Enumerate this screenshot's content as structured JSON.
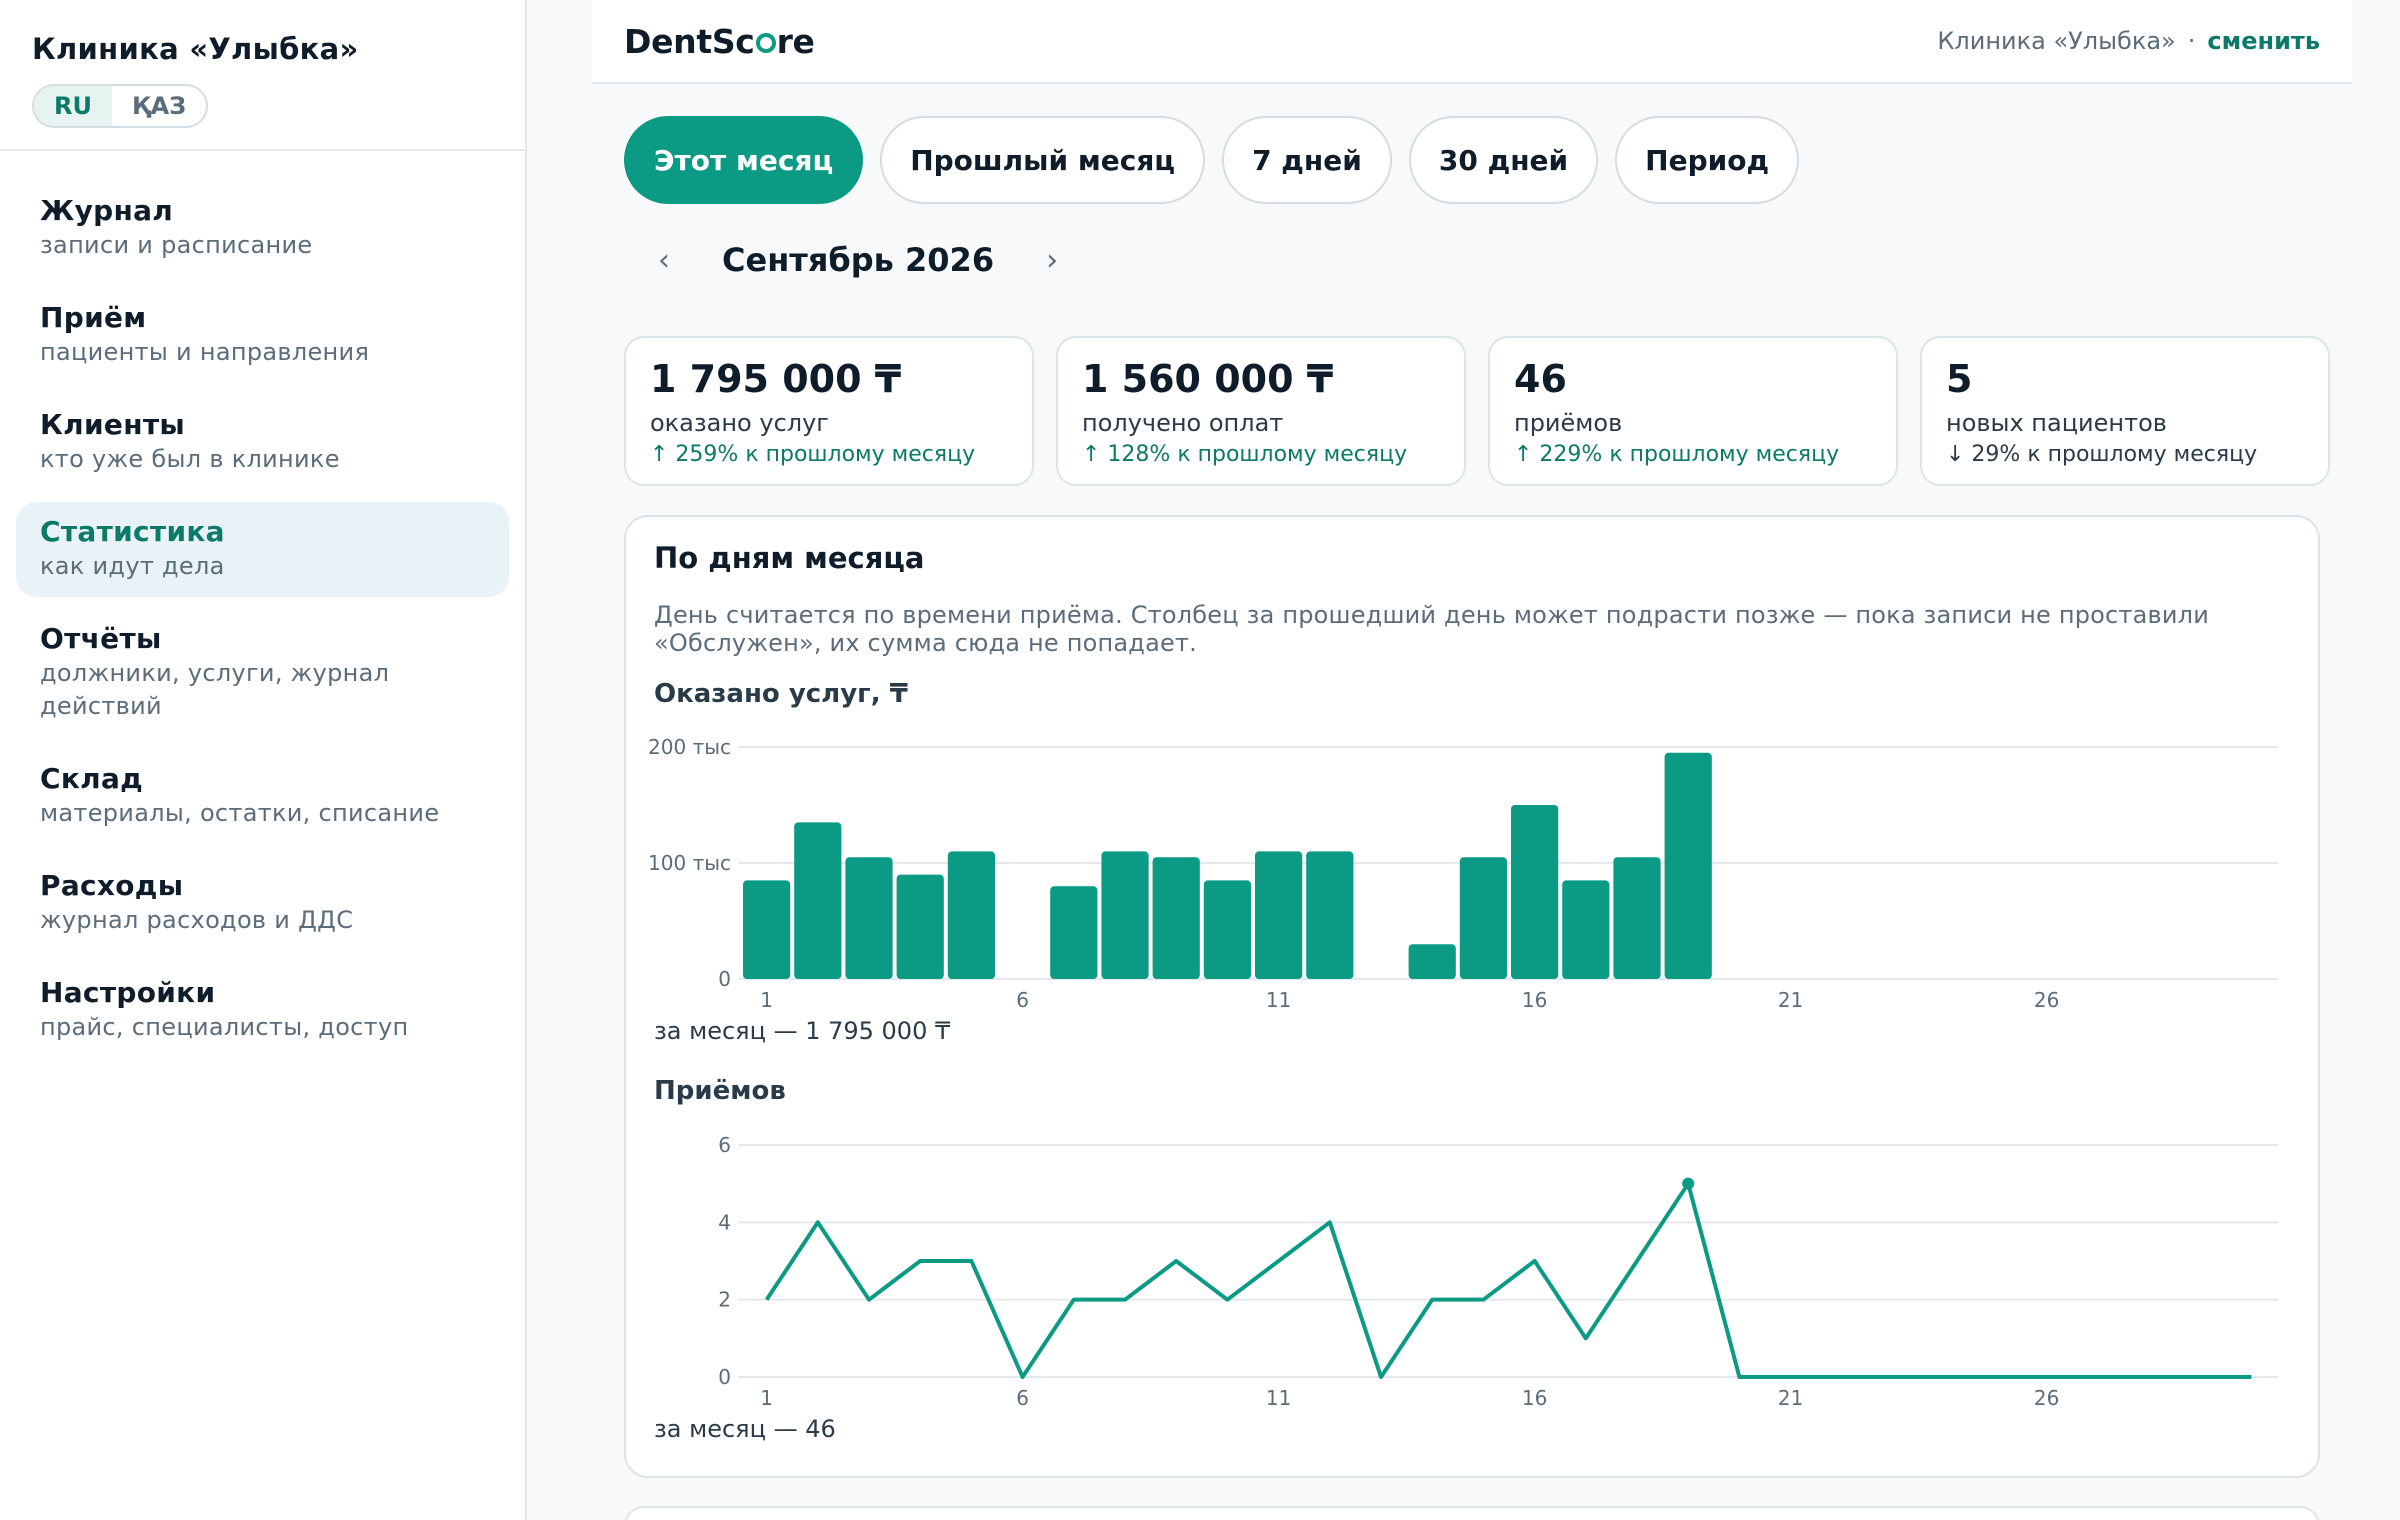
{
  "sidebar": {
    "clinic_name": "Клиника «Улыбка»",
    "lang": [
      "RU",
      "ҚАЗ"
    ],
    "items": [
      {
        "title": "Журнал",
        "subtitle": "записи и расписание"
      },
      {
        "title": "Приём",
        "subtitle": "пациенты и направления"
      },
      {
        "title": "Клиенты",
        "subtitle": "кто уже был в клинике"
      },
      {
        "title": "Статистика",
        "subtitle": "как идут дела"
      },
      {
        "title": "Отчёты",
        "subtitle": "должники, услуги, журнал действий"
      },
      {
        "title": "Склад",
        "subtitle": "материалы, остатки, списание"
      },
      {
        "title": "Расходы",
        "subtitle": "журнал расходов и ДДС"
      },
      {
        "title": "Настройки",
        "subtitle": "прайс, специалисты, доступ"
      }
    ]
  },
  "topbar": {
    "logo_pre": "DentSc",
    "logo_post": "re",
    "clinic": "Клиника «Улыбка»",
    "separator": "·",
    "change": "сменить"
  },
  "tabs": [
    "Этот месяц",
    "Прошлый месяц",
    "7 дней",
    "30 дней",
    "Период"
  ],
  "month_nav": {
    "prev": "‹",
    "label": "Сентябрь 2026",
    "next": "›"
  },
  "kpis": [
    {
      "value": "1 795 000 ₸",
      "label": "оказано услуг",
      "delta": "↑ 259% к прошлому месяцу"
    },
    {
      "value": "1 560 000 ₸",
      "label": "получено оплат",
      "delta": "↑ 128% к прошлому месяцу"
    },
    {
      "value": "46",
      "label": "приёмов",
      "delta": "↑ 229% к прошлому месяцу"
    },
    {
      "value": "5",
      "label": "новых пациентов",
      "delta": "↓ 29% к прошлому месяцу"
    }
  ],
  "card": {
    "title": "По дням месяца",
    "desc": "День считается по времени приёма. Столбец за прошедший день может подрасти позже — пока записи не проставили «Обслужен», их сумма сюда не попадает.",
    "bar_title": "Оказано услуг, ₸",
    "bar_total": "за месяц — 1 795 000 ₸",
    "line_title": "Приёмов",
    "line_total": "за месяц — 46"
  },
  "colors": {
    "accent": "#0b9a84",
    "grid": "#e3e8ec",
    "axis_text": "#5b6d7a"
  },
  "chart_data": [
    {
      "type": "bar",
      "title": "Оказано услуг, ₸",
      "x": [
        1,
        2,
        3,
        4,
        5,
        6,
        7,
        8,
        9,
        10,
        11,
        12,
        13,
        14,
        15,
        16,
        17,
        18,
        19,
        20,
        21,
        22,
        23,
        24,
        25,
        26,
        27,
        28,
        29,
        30
      ],
      "values": [
        85000,
        135000,
        105000,
        90000,
        110000,
        0,
        80000,
        110000,
        105000,
        85000,
        110000,
        110000,
        0,
        30000,
        105000,
        150000,
        85000,
        105000,
        195000,
        0,
        0,
        0,
        0,
        0,
        0,
        0,
        0,
        0,
        0,
        0
      ],
      "ylim": [
        0,
        200000
      ],
      "yticks": [
        "0",
        "100 тыс",
        "200 тыс"
      ],
      "xticks": [
        "1",
        "6",
        "11",
        "16",
        "21",
        "26"
      ],
      "grid": true
    },
    {
      "type": "line",
      "title": "Приёмов",
      "x": [
        1,
        2,
        3,
        4,
        5,
        6,
        7,
        8,
        9,
        10,
        11,
        12,
        13,
        14,
        15,
        16,
        17,
        18,
        19,
        20,
        21,
        22,
        23,
        24,
        25,
        26,
        27,
        28,
        29,
        30
      ],
      "values": [
        2,
        4,
        2,
        3,
        3,
        0,
        2,
        2,
        3,
        2,
        3,
        4,
        0,
        2,
        2,
        3,
        1,
        3,
        5,
        0,
        0,
        0,
        0,
        0,
        0,
        0,
        0,
        0,
        0,
        0
      ],
      "highlight_x": 19,
      "ylim": [
        0,
        6
      ],
      "yticks": [
        "0",
        "2",
        "4",
        "6"
      ],
      "xticks": [
        "1",
        "6",
        "11",
        "16",
        "21",
        "26"
      ],
      "grid": true
    }
  ]
}
